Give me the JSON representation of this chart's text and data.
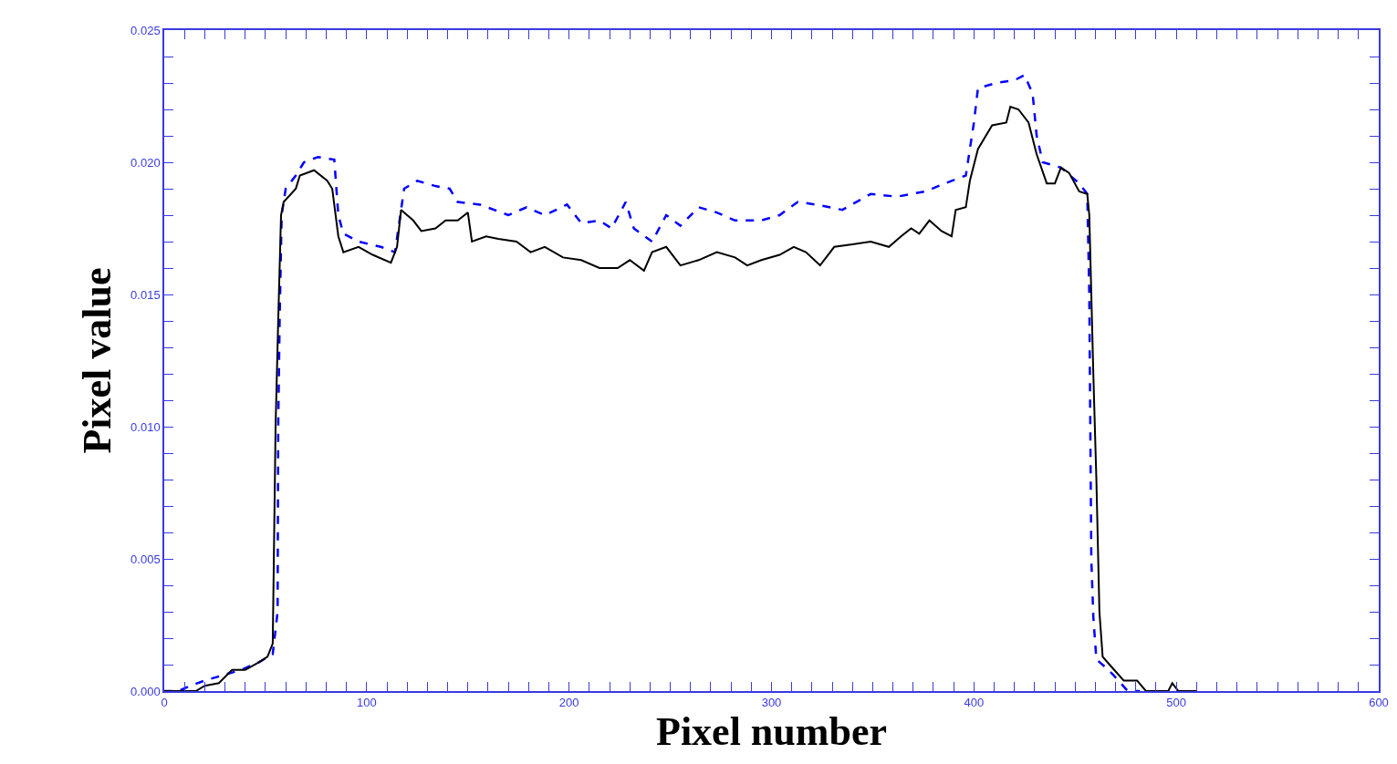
{
  "chart_data": {
    "type": "line",
    "xlabel": "Pixel number",
    "ylabel": "Pixel value",
    "xlim": [
      0,
      600
    ],
    "ylim": [
      0,
      0.025
    ],
    "xticks": [
      0,
      {
        "value": 10,
        "label": null
      },
      {
        "value": 20,
        "label": null
      },
      {
        "value": 30,
        "label": null
      },
      {
        "value": 40,
        "label": null
      },
      {
        "value": 50,
        "label": null
      },
      {
        "value": 60,
        "label": null
      },
      {
        "value": 70,
        "label": null
      },
      {
        "value": 80,
        "label": null
      },
      {
        "value": 90,
        "label": null
      },
      100,
      {
        "value": 110,
        "label": null
      },
      {
        "value": 120,
        "label": null
      },
      {
        "value": 130,
        "label": null
      },
      {
        "value": 140,
        "label": null
      },
      {
        "value": 150,
        "label": null
      },
      {
        "value": 160,
        "label": null
      },
      {
        "value": 170,
        "label": null
      },
      {
        "value": 180,
        "label": null
      },
      {
        "value": 190,
        "label": null
      },
      200,
      {
        "value": 210,
        "label": null
      },
      {
        "value": 220,
        "label": null
      },
      {
        "value": 230,
        "label": null
      },
      {
        "value": 240,
        "label": null
      },
      {
        "value": 250,
        "label": null
      },
      {
        "value": 260,
        "label": null
      },
      {
        "value": 270,
        "label": null
      },
      {
        "value": 280,
        "label": null
      },
      {
        "value": 290,
        "label": null
      },
      300,
      {
        "value": 310,
        "label": null
      },
      {
        "value": 320,
        "label": null
      },
      {
        "value": 330,
        "label": null
      },
      {
        "value": 340,
        "label": null
      },
      {
        "value": 350,
        "label": null
      },
      {
        "value": 360,
        "label": null
      },
      {
        "value": 370,
        "label": null
      },
      {
        "value": 380,
        "label": null
      },
      {
        "value": 390,
        "label": null
      },
      400,
      {
        "value": 410,
        "label": null
      },
      {
        "value": 420,
        "label": null
      },
      {
        "value": 430,
        "label": null
      },
      {
        "value": 440,
        "label": null
      },
      {
        "value": 450,
        "label": null
      },
      {
        "value": 460,
        "label": null
      },
      {
        "value": 470,
        "label": null
      },
      {
        "value": 480,
        "label": null
      },
      {
        "value": 490,
        "label": null
      },
      500,
      {
        "value": 510,
        "label": null
      },
      {
        "value": 520,
        "label": null
      },
      {
        "value": 530,
        "label": null
      },
      {
        "value": 540,
        "label": null
      },
      {
        "value": 550,
        "label": null
      },
      {
        "value": 560,
        "label": null
      },
      {
        "value": 570,
        "label": null
      },
      {
        "value": 580,
        "label": null
      },
      {
        "value": 590,
        "label": null
      },
      600
    ],
    "yticks": [
      {
        "value": 0,
        "label": "0.000"
      },
      {
        "value": 0.001,
        "label": null
      },
      {
        "value": 0.002,
        "label": null
      },
      {
        "value": 0.003,
        "label": null
      },
      {
        "value": 0.004,
        "label": null
      },
      0.005,
      {
        "value": 0.006,
        "label": null
      },
      {
        "value": 0.007,
        "label": null
      },
      {
        "value": 0.008,
        "label": null
      },
      {
        "value": 0.009,
        "label": null
      },
      {
        "value": 0.01,
        "label": "0.010"
      },
      {
        "value": 0.011,
        "label": null
      },
      {
        "value": 0.012,
        "label": null
      },
      {
        "value": 0.013,
        "label": null
      },
      {
        "value": 0.014,
        "label": null
      },
      0.015,
      {
        "value": 0.016,
        "label": null
      },
      {
        "value": 0.017,
        "label": null
      },
      {
        "value": 0.018,
        "label": null
      },
      {
        "value": 0.019,
        "label": null
      },
      {
        "value": 0.02,
        "label": "0.020"
      },
      {
        "value": 0.021,
        "label": null
      },
      {
        "value": 0.022,
        "label": null
      },
      {
        "value": 0.023,
        "label": null
      },
      {
        "value": 0.024,
        "label": null
      },
      0.025
    ],
    "series": [
      {
        "color": "#0000ff",
        "line_style": "dashed",
        "x": [
          0,
          7,
          13,
          20,
          29,
          38,
          47,
          53.6,
          56,
          56.3,
          57,
          58,
          60,
          65,
          69,
          76,
          84,
          86,
          88.5,
          96,
          107,
          114,
          118.5,
          125,
          134,
          141,
          145,
          156,
          170,
          179,
          188,
          199,
          206,
          215,
          221,
          228,
          232,
          241,
          248,
          255,
          264,
          273,
          282,
          295,
          304,
          313,
          322,
          335,
          349,
          362,
          376,
          389,
          396,
          398,
          400,
          402,
          411,
          420,
          425,
          429,
          431,
          434,
          443,
          452,
          456,
          457,
          458,
          459,
          460.5,
          465,
          469,
          476,
          482
        ],
        "values": [
          0,
          0,
          0.0002,
          0.0004,
          0.0006,
          0.0008,
          0.0011,
          0.0014,
          0.003,
          0.01,
          0.014,
          0.018,
          0.019,
          0.0195,
          0.02,
          0.0202,
          0.0201,
          0.018,
          0.0173,
          0.017,
          0.0168,
          0.0166,
          0.019,
          0.0193,
          0.0191,
          0.019,
          0.0185,
          0.0184,
          0.018,
          0.0183,
          0.018,
          0.0184,
          0.0177,
          0.0178,
          0.0175,
          0.0185,
          0.0175,
          0.017,
          0.018,
          0.0176,
          0.0183,
          0.0181,
          0.0178,
          0.0178,
          0.018,
          0.0185,
          0.0184,
          0.0182,
          0.0188,
          0.0187,
          0.0189,
          0.0193,
          0.0195,
          0.0205,
          0.0215,
          0.0228,
          0.023,
          0.0231,
          0.0233,
          0.0226,
          0.021,
          0.02,
          0.0198,
          0.0192,
          0.0188,
          0.015,
          0.005,
          0.0028,
          0.0012,
          0.0009,
          0.0006,
          0,
          0
        ]
      },
      {
        "color": "#000000",
        "line_style": "solid",
        "x": [
          0,
          15.6,
          20,
          27,
          33.5,
          40,
          47,
          51,
          53.6,
          55,
          56.3,
          57.7,
          59,
          65,
          67,
          74,
          80.5,
          83,
          86,
          88.5,
          96,
          103,
          112,
          115,
          117,
          123,
          127,
          134,
          139,
          145,
          150,
          152,
          159,
          165,
          174,
          181,
          188,
          197,
          206,
          215,
          224,
          230,
          237,
          241,
          248,
          255,
          264,
          273,
          282,
          288,
          295,
          304,
          311,
          317,
          324,
          331,
          340,
          349,
          358,
          364,
          369,
          373,
          378,
          384,
          389,
          391,
          396,
          398,
          402,
          409,
          416,
          418,
          422,
          427,
          431,
          436,
          440,
          443,
          447,
          452,
          456,
          457,
          459,
          460.5,
          462,
          463.6,
          467,
          474,
          480.6,
          485,
          496,
          498,
          501,
          510
        ],
        "values": [
          0,
          0,
          0.0002,
          0.0003,
          0.0008,
          0.0008,
          0.0011,
          0.0013,
          0.0018,
          0.01,
          0.014,
          0.018,
          0.0185,
          0.019,
          0.0195,
          0.0197,
          0.0193,
          0.019,
          0.0172,
          0.0166,
          0.0168,
          0.0165,
          0.0162,
          0.0168,
          0.0182,
          0.0178,
          0.0174,
          0.0175,
          0.0178,
          0.0178,
          0.0181,
          0.017,
          0.0172,
          0.0171,
          0.017,
          0.0166,
          0.0168,
          0.0164,
          0.0163,
          0.016,
          0.016,
          0.0163,
          0.0159,
          0.0166,
          0.0168,
          0.0161,
          0.0163,
          0.0166,
          0.0164,
          0.0161,
          0.0163,
          0.0165,
          0.0168,
          0.0166,
          0.0161,
          0.0168,
          0.0169,
          0.017,
          0.0168,
          0.0172,
          0.0175,
          0.0173,
          0.0178,
          0.0174,
          0.0172,
          0.0182,
          0.0183,
          0.0193,
          0.0205,
          0.0214,
          0.0215,
          0.0221,
          0.022,
          0.0215,
          0.0203,
          0.0192,
          0.0192,
          0.0198,
          0.0196,
          0.0189,
          0.0188,
          0.018,
          0.012,
          0.008,
          0.003,
          0.0013,
          0.001,
          0.0004,
          0.0004,
          0,
          0,
          0.0003,
          0,
          0
        ]
      }
    ]
  }
}
